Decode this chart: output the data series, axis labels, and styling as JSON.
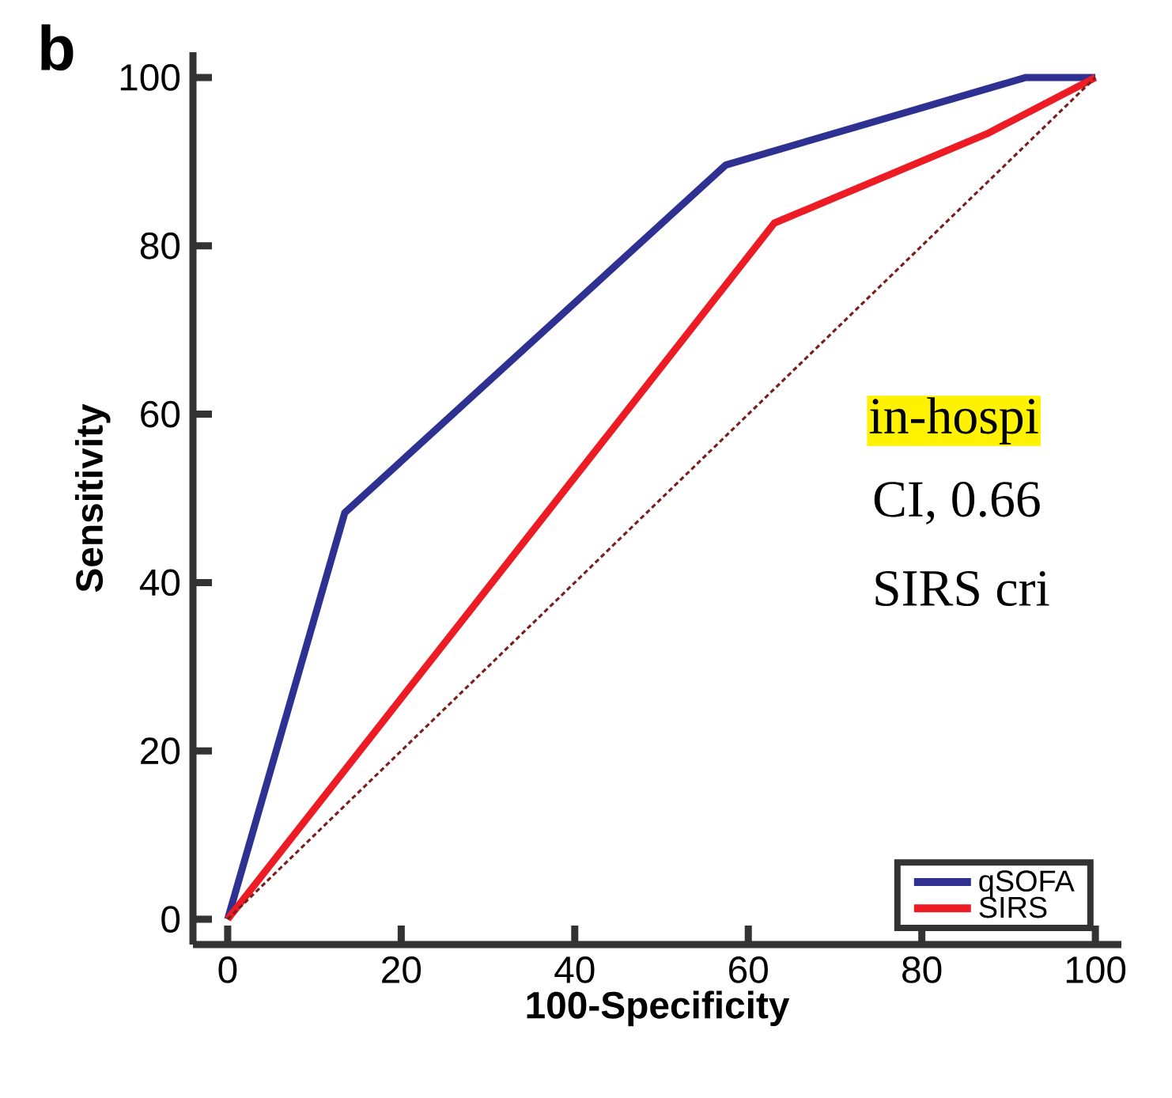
{
  "chart_data": {
    "type": "line",
    "xlabel": "100-Specificity",
    "ylabel": "Sensitivity",
    "xlim": [
      -4,
      103
    ],
    "ylim": [
      -3,
      103
    ],
    "xticks": [
      0,
      20,
      40,
      60,
      80,
      100
    ],
    "yticks": [
      0,
      20,
      40,
      60,
      80,
      100
    ],
    "grid": false,
    "legend": "bottom right",
    "series": [
      {
        "name": "qSOFA",
        "color": "#2e3192",
        "x": [
          0,
          13.5,
          57.4,
          92,
          100
        ],
        "values": [
          0,
          48.3,
          89.6,
          100,
          100
        ]
      },
      {
        "name": "SIRS",
        "color": "#ed1c24",
        "x": [
          0,
          63,
          87.5,
          100
        ],
        "values": [
          0,
          82.7,
          93.3,
          100
        ]
      },
      {
        "color": "#7a1f1f",
        "line_style": "dashed",
        "x": [
          0,
          100
        ],
        "values": [
          0,
          100
        ]
      }
    ],
    "annotations": [
      "b",
      "in-hospi",
      "CI, 0.66",
      "SIRS cri"
    ]
  }
}
